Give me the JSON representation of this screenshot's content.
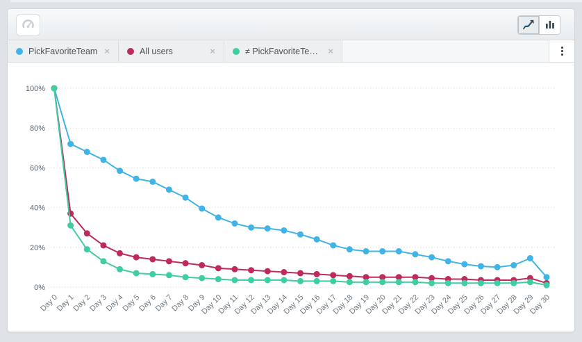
{
  "toolbar": {
    "dashboard_button_icon": "gauge-icon",
    "chart_type_options": [
      "line",
      "bar"
    ],
    "chart_type_selected": "line"
  },
  "chips": {
    "close_glyph": "×",
    "items": [
      {
        "label": "PickFavoriteTeam",
        "color": "#40b3e7"
      },
      {
        "label": "All users",
        "color": "#bd2a5b"
      },
      {
        "label": "≠ PickFavoriteTeam...",
        "color": "#3fcda4"
      }
    ]
  },
  "menu": {
    "kebab_icon": "vertical-ellipsis"
  },
  "chart_data": {
    "type": "line",
    "title": "",
    "xlabel": "",
    "ylabel": "",
    "ylim": [
      0,
      100
    ],
    "grid": "dotted-horizontal",
    "legend_position": "chips-top",
    "y_ticks": [
      "100%",
      "80%",
      "60%",
      "40%",
      "20%",
      "0%"
    ],
    "x": [
      "Day 0",
      "Day 1",
      "Day 2",
      "Day 3",
      "Day 4",
      "Day 5",
      "Day 6",
      "Day 7",
      "Day 8",
      "Day 9",
      "Day 10",
      "Day 11",
      "Day 12",
      "Day 13",
      "Day 14",
      "Day 15",
      "Day 16",
      "Day 17",
      "Day 18",
      "Day 19",
      "Day 20",
      "Day 21",
      "Day 22",
      "Day 23",
      "Day 24",
      "Day 25",
      "Day 26",
      "Day 27",
      "Day 28",
      "Day 29",
      "Day 30"
    ],
    "series": [
      {
        "name": "PickFavoriteTeam",
        "color": "#40b3e7",
        "values": [
          100,
          72,
          68,
          64,
          58.5,
          54.5,
          53,
          49,
          45,
          39.5,
          35,
          32,
          30,
          29.5,
          28.5,
          26.5,
          24,
          21,
          19,
          18,
          18,
          18,
          16.5,
          15,
          13,
          11.5,
          10.5,
          10,
          11,
          14.5,
          5
        ]
      },
      {
        "name": "All users",
        "color": "#bd2a5b",
        "values": [
          100,
          37,
          27,
          21,
          17,
          15,
          14,
          13,
          12,
          11,
          9.5,
          9,
          8.5,
          8,
          7.5,
          7,
          6.5,
          6,
          5.5,
          5,
          5,
          5,
          5,
          4.5,
          4,
          4,
          3.5,
          3.5,
          3.5,
          4.5,
          2
        ]
      },
      {
        "name": "≠ PickFavoriteTeam...",
        "color": "#3fcda4",
        "values": [
          100,
          31,
          19,
          13,
          9,
          7,
          6.5,
          6,
          5,
          4.5,
          4,
          3.5,
          3.5,
          3.5,
          3.5,
          3,
          3,
          3,
          2.5,
          2.5,
          2.5,
          2.5,
          2.5,
          2,
          2,
          2,
          2,
          2,
          2,
          2.5,
          1
        ]
      }
    ]
  }
}
